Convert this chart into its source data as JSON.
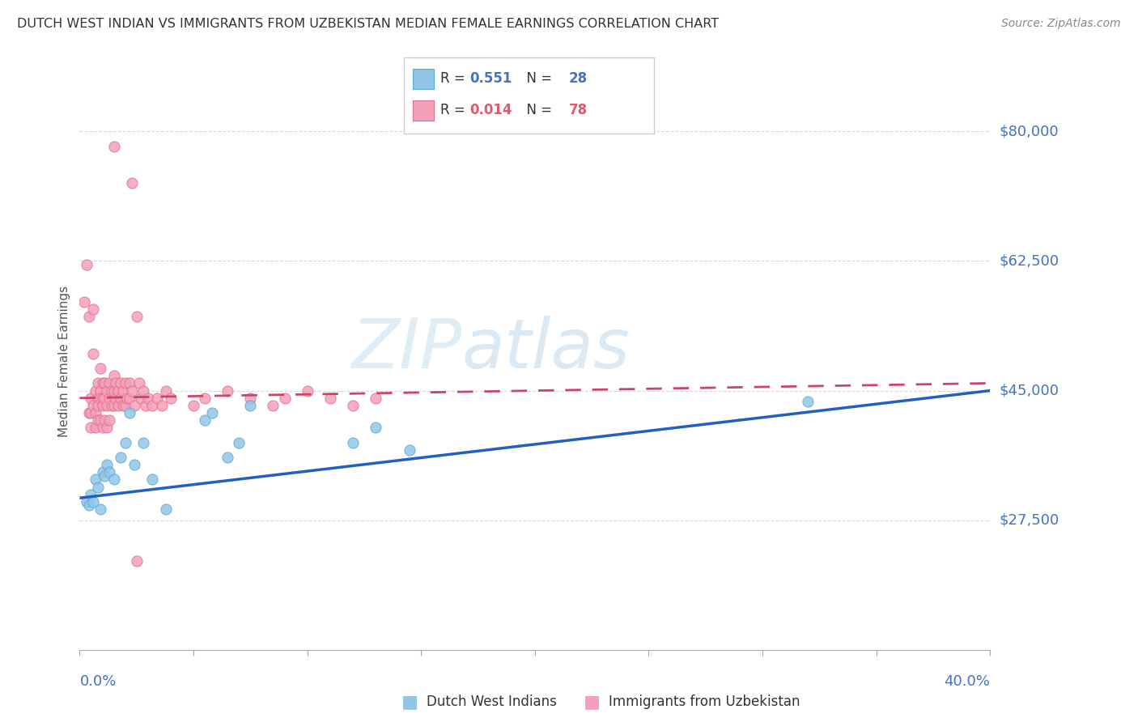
{
  "title": "DUTCH WEST INDIAN VS IMMIGRANTS FROM UZBEKISTAN MEDIAN FEMALE EARNINGS CORRELATION CHART",
  "source": "Source: ZipAtlas.com",
  "ylabel": "Median Female Earnings",
  "yticks": [
    0,
    27500,
    45000,
    62500,
    80000
  ],
  "ytick_labels": [
    "",
    "$27,500",
    "$45,000",
    "$62,500",
    "$80,000"
  ],
  "xmin": 0.0,
  "xmax": 0.4,
  "ymin": 10000,
  "ymax": 88000,
  "blue_scatter_color": "#92c5e8",
  "blue_edge_color": "#5aaad0",
  "pink_scatter_color": "#f4a0b8",
  "pink_edge_color": "#e07090",
  "blue_line_color": "#2060c0",
  "pink_line_color": "#cc4466",
  "grid_color": "#d8d8d8",
  "watermark_color": "#c8e4f4",
  "blue_points_x": [
    0.003,
    0.004,
    0.005,
    0.006,
    0.007,
    0.008,
    0.009,
    0.01,
    0.011,
    0.012,
    0.013,
    0.015,
    0.018,
    0.02,
    0.022,
    0.024,
    0.028,
    0.032,
    0.038,
    0.055,
    0.058,
    0.065,
    0.07,
    0.075,
    0.12,
    0.13,
    0.145,
    0.32
  ],
  "blue_points_y": [
    30000,
    29500,
    31000,
    30000,
    33000,
    32000,
    29000,
    34000,
    33500,
    35000,
    34000,
    33000,
    36000,
    38000,
    42000,
    35000,
    38000,
    33000,
    29000,
    41000,
    42000,
    36000,
    38000,
    43000,
    38000,
    40000,
    37000,
    43500
  ],
  "pink_points_x": [
    0.002,
    0.003,
    0.004,
    0.004,
    0.005,
    0.005,
    0.005,
    0.006,
    0.006,
    0.006,
    0.007,
    0.007,
    0.007,
    0.008,
    0.008,
    0.008,
    0.008,
    0.009,
    0.009,
    0.009,
    0.009,
    0.01,
    0.01,
    0.01,
    0.01,
    0.011,
    0.011,
    0.011,
    0.012,
    0.012,
    0.012,
    0.013,
    0.013,
    0.013,
    0.014,
    0.014,
    0.015,
    0.015,
    0.015,
    0.016,
    0.016,
    0.017,
    0.017,
    0.018,
    0.018,
    0.019,
    0.019,
    0.02,
    0.02,
    0.021,
    0.022,
    0.022,
    0.023,
    0.024,
    0.025,
    0.026,
    0.027,
    0.028,
    0.029,
    0.03,
    0.032,
    0.034,
    0.036,
    0.038,
    0.04,
    0.05,
    0.055,
    0.065,
    0.075,
    0.085,
    0.09,
    0.1,
    0.11,
    0.12,
    0.13,
    0.015,
    0.023,
    0.025
  ],
  "pink_points_y": [
    57000,
    62000,
    55000,
    42000,
    44000,
    42000,
    40000,
    56000,
    50000,
    43000,
    45000,
    42000,
    40000,
    46000,
    44000,
    43000,
    41000,
    48000,
    45000,
    44000,
    41000,
    46000,
    44000,
    43000,
    40000,
    46000,
    44000,
    41000,
    45000,
    43000,
    40000,
    46000,
    44000,
    41000,
    45000,
    43000,
    47000,
    45000,
    43000,
    46000,
    44000,
    45000,
    43000,
    46000,
    44000,
    45000,
    43000,
    46000,
    43000,
    44000,
    46000,
    44000,
    45000,
    43000,
    55000,
    46000,
    44000,
    45000,
    43000,
    44000,
    43000,
    44000,
    43000,
    45000,
    44000,
    43000,
    44000,
    45000,
    44000,
    43000,
    44000,
    45000,
    44000,
    43000,
    44000,
    78000,
    73000,
    22000
  ],
  "blue_trend_x0": 0.0,
  "blue_trend_y0": 30500,
  "blue_trend_x1": 0.4,
  "blue_trend_y1": 45000,
  "pink_trend_x0": 0.0,
  "pink_trend_y0": 44000,
  "pink_trend_x1": 0.4,
  "pink_trend_y1": 46000
}
